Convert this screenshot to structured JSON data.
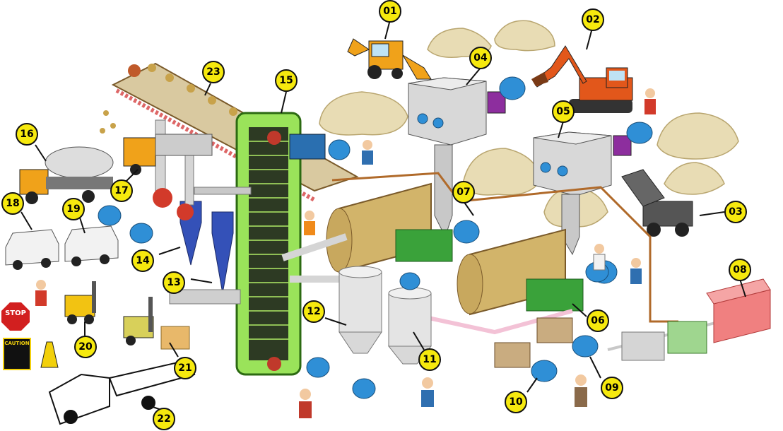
{
  "callouts": [
    "01",
    "02",
    "03",
    "04",
    "05",
    "06",
    "07",
    "08",
    "09",
    "10",
    "11",
    "12",
    "13",
    "14",
    "15",
    "16",
    "17",
    "18",
    "19",
    "20",
    "21",
    "22",
    "23"
  ],
  "signs": {
    "stop": "STOP",
    "caution": "CAUTION"
  },
  "colors": {
    "callout_fill": "#f6e90e",
    "mill_drum": "#d2b46a",
    "gear_green": "#3aa23a",
    "motor_blue": "#2f8fd6",
    "elevator_green": "#9ae35a",
    "excavator_orange": "#e2571b",
    "cyclone_blue": "#3451b8",
    "hopper_gray": "#d0d0d0",
    "pipe_brown": "#b06a2a",
    "tank_pink": "#f08080"
  }
}
